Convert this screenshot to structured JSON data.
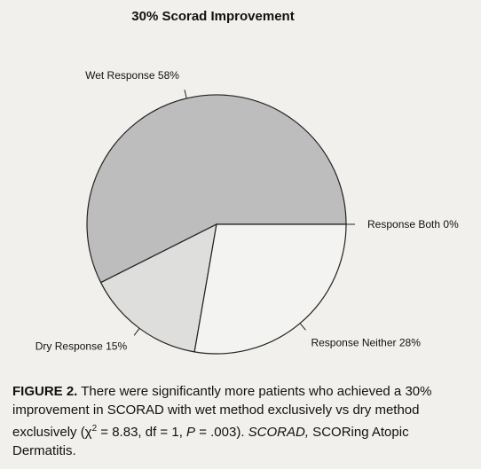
{
  "chart_data": {
    "type": "pie",
    "title": "30% Scorad Improvement",
    "slices": [
      {
        "name": "Response Both",
        "label": "Response Both 0%",
        "value": 0,
        "color": "#bdbdbd"
      },
      {
        "name": "Wet Response",
        "label": "Wet Response 58%",
        "value": 58,
        "color": "#bdbdbd"
      },
      {
        "name": "Dry Response",
        "label": "Dry Response 15%",
        "value": 15,
        "color": "#dededc"
      },
      {
        "name": "Response Neither",
        "label": "Response Neither 28%",
        "value": 28,
        "color": "#f3f3f1"
      }
    ],
    "start_angle_deg": 0,
    "direction": "counterclockwise"
  },
  "caption": {
    "label": "FIGURE 2.",
    "text_1": " There were significantly more patients who achieved a 30% improvement in SCORAD with wet method exclusively vs dry method exclusively (χ",
    "sup": "2",
    "text_2": " = 8.83, df = 1, ",
    "p_symbol": "P",
    "text_3": " = .003). ",
    "abbr": "SCORAD,",
    "text_4": " SCORing Atopic Dermatitis."
  }
}
